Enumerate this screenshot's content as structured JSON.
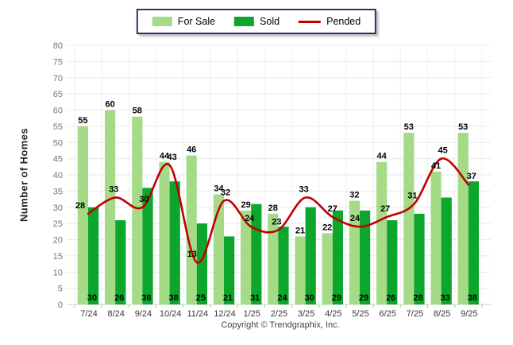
{
  "legend": {
    "items": [
      {
        "label": "For Sale",
        "color": "#A5DB87",
        "marker": "swatch"
      },
      {
        "label": "Sold",
        "color": "#0CA62C",
        "marker": "swatch"
      },
      {
        "label": "Pended",
        "color": "#C00000",
        "marker": "line"
      }
    ]
  },
  "footer": {
    "copyright": "Copyright © Trendgraphix, Inc."
  },
  "chart_data": {
    "type": "bar",
    "title": "",
    "xlabel": "",
    "ylabel": "Number of Homes",
    "ylim": [
      0,
      80
    ],
    "ytick_step": 5,
    "grid": true,
    "legend_position": "top-center",
    "categories": [
      "7/24",
      "8/24",
      "9/24",
      "10/24",
      "11/24",
      "12/24",
      "1/25",
      "2/25",
      "3/25",
      "4/25",
      "5/25",
      "6/25",
      "7/25",
      "8/25",
      "9/25"
    ],
    "series": [
      {
        "name": "For Sale",
        "type": "bar",
        "color": "#A5DB87",
        "values": [
          55,
          60,
          58,
          44,
          46,
          34,
          29,
          28,
          21,
          22,
          32,
          44,
          53,
          41,
          53
        ]
      },
      {
        "name": "Sold",
        "type": "bar",
        "color": "#0CA62C",
        "values": [
          30,
          26,
          36,
          38,
          25,
          21,
          31,
          24,
          30,
          29,
          29,
          26,
          28,
          33,
          38
        ]
      },
      {
        "name": "Pended",
        "type": "line",
        "color": "#C00000",
        "values": [
          28,
          33,
          30,
          43,
          13,
          32,
          24,
          23,
          33,
          27,
          24,
          27,
          31,
          45,
          37
        ]
      }
    ],
    "colors": {
      "grid_h": "#e9e9e9",
      "grid_v": "#f1f1f1",
      "baseline": "#cfcfcf",
      "tick": "#b5b5b5",
      "ytick_text": "#757575",
      "xtick_text": "#383838",
      "value_text": "#000000",
      "legend_border": "#1F3864"
    }
  }
}
